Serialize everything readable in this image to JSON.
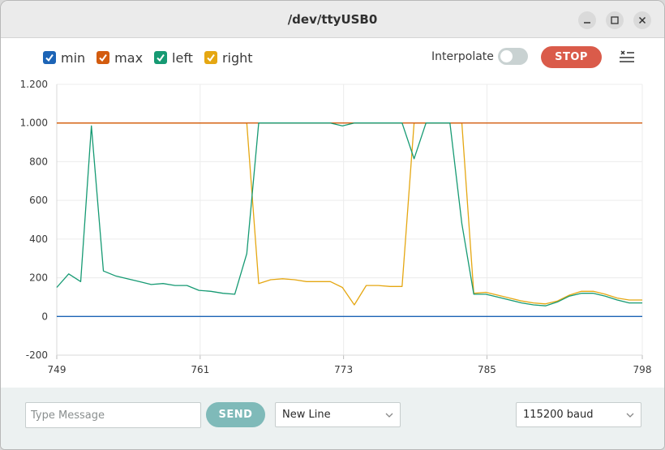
{
  "window": {
    "title": "/dev/ttyUSB0"
  },
  "legend": [
    {
      "label": "min",
      "color": "#1c64b6"
    },
    {
      "label": "max",
      "color": "#d35c0f"
    },
    {
      "label": "left",
      "color": "#169a73"
    },
    {
      "label": "right",
      "color": "#e5a712"
    }
  ],
  "controls": {
    "interpolate_label": "Interpolate",
    "interpolate_on": false,
    "stop_label": "STOP"
  },
  "footer": {
    "message_placeholder": "Type Message",
    "send_label": "SEND",
    "line_ending": "New Line",
    "baud": "115200 baud"
  },
  "chart_data": {
    "type": "line",
    "title": "",
    "xlabel": "",
    "ylabel": "",
    "xlim": [
      749,
      798
    ],
    "ylim": [
      -200,
      1200
    ],
    "x_ticks": [
      749,
      761,
      773,
      785,
      798
    ],
    "y_ticks": [
      -200,
      0,
      200,
      400,
      600,
      800,
      1000,
      1200
    ],
    "y_tick_labels": [
      "-200",
      "0",
      "200",
      "400",
      "600",
      "800",
      "1.000",
      "1.200"
    ],
    "series": [
      {
        "name": "min",
        "color": "#1c64b6",
        "x": [
          749,
          798
        ],
        "y": [
          0,
          0
        ]
      },
      {
        "name": "max",
        "color": "#d35c0f",
        "x": [
          749,
          798
        ],
        "y": [
          1000,
          1000
        ]
      },
      {
        "name": "left",
        "color": "#169a73",
        "x": [
          749,
          750,
          751,
          751.9,
          752.9,
          753.9,
          754.9,
          755.9,
          756.9,
          757.9,
          758.9,
          759.9,
          760.9,
          761.9,
          762.9,
          763.9,
          764.9,
          765.9,
          766.9,
          767.9,
          768.9,
          769.9,
          770.9,
          771.9,
          772.9,
          773.9,
          774.9,
          775.9,
          776.9,
          777.9,
          778.9,
          779.9,
          780.9,
          781.9,
          782.9,
          783.9,
          784.9,
          785.9,
          786.9,
          787.9,
          788.9,
          789.9,
          790.9,
          791.9,
          792.9,
          793.9,
          794.9,
          795.9,
          796.9,
          798
        ],
        "y": [
          150,
          220,
          180,
          985,
          235,
          210,
          195,
          180,
          165,
          170,
          160,
          160,
          135,
          130,
          120,
          115,
          325,
          1000,
          1000,
          1000,
          1000,
          1000,
          1000,
          1000,
          985,
          1000,
          1000,
          1000,
          1000,
          1000,
          815,
          1000,
          1000,
          1000,
          480,
          115,
          115,
          100,
          85,
          70,
          60,
          55,
          75,
          105,
          120,
          120,
          105,
          85,
          70,
          70
        ]
      },
      {
        "name": "right",
        "color": "#e5a712",
        "x": [
          749,
          750,
          751,
          751.9,
          752.9,
          753.9,
          754.9,
          755.9,
          756.9,
          757.9,
          758.9,
          759.9,
          760.9,
          761.9,
          762.9,
          763.9,
          764.9,
          765.9,
          766.9,
          767.9,
          768.9,
          769.9,
          770.9,
          771.9,
          772.9,
          773.9,
          774.9,
          775.9,
          776.9,
          777.9,
          778.9,
          779.9,
          780.9,
          781.9,
          782.9,
          783.9,
          784.9,
          785.9,
          786.9,
          787.9,
          788.9,
          789.9,
          790.9,
          791.9,
          792.9,
          793.9,
          794.9,
          795.9,
          796.9,
          798
        ],
        "y": [
          1000,
          1000,
          1000,
          1000,
          1000,
          1000,
          1000,
          1000,
          1000,
          1000,
          1000,
          1000,
          1000,
          1000,
          1000,
          1000,
          1000,
          170,
          190,
          195,
          190,
          180,
          180,
          180,
          150,
          60,
          160,
          160,
          155,
          155,
          1000,
          1000,
          1000,
          1000,
          1000,
          120,
          125,
          110,
          95,
          80,
          70,
          65,
          80,
          110,
          130,
          130,
          115,
          95,
          85,
          85
        ]
      }
    ]
  }
}
